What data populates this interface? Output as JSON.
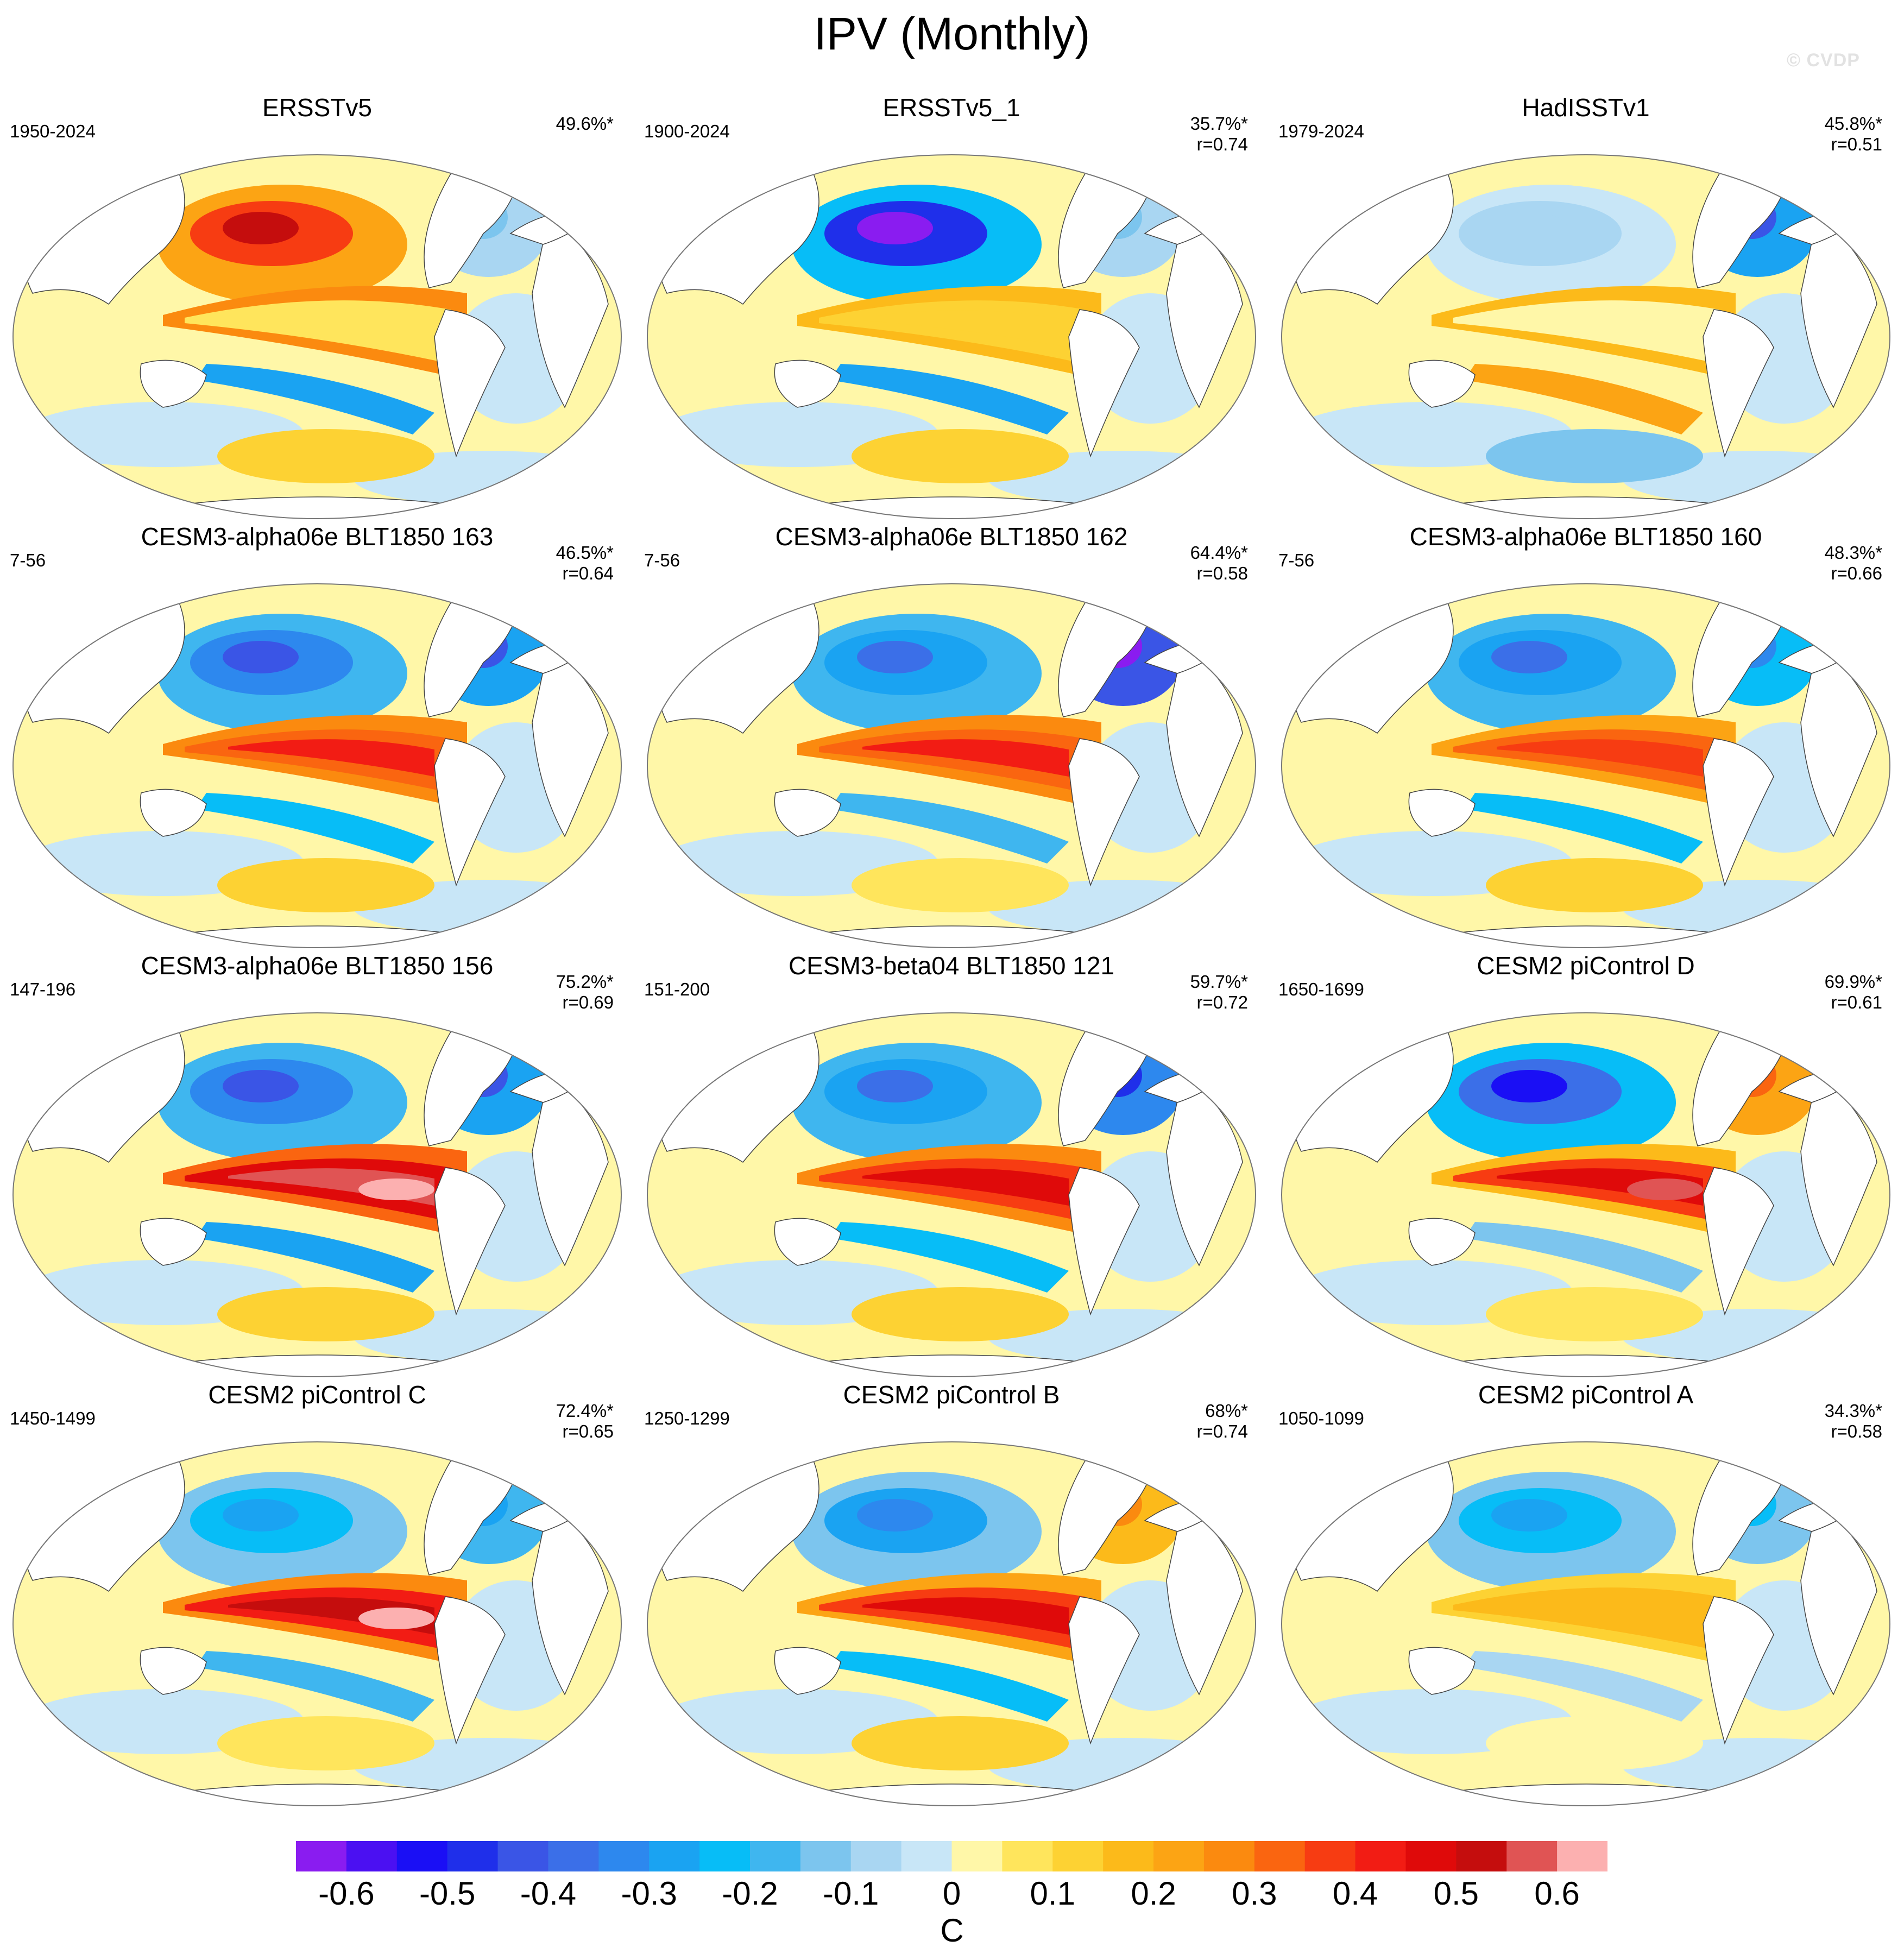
{
  "title": "IPV (Monthly)",
  "watermark": "© CVDP",
  "panels": [
    {
      "title": "ERSSTv5",
      "period": "1950-2024",
      "pct": "49.6%*",
      "r": "",
      "pattern": 0
    },
    {
      "title": "ERSSTv5_1",
      "period": "1900-2024",
      "pct": "35.7%*",
      "r": "r=0.74",
      "pattern": 1
    },
    {
      "title": "HadISSTv1",
      "period": "1979-2024",
      "pct": "45.8%*",
      "r": "r=0.51",
      "pattern": 2
    },
    {
      "title": "CESM3-alpha06e BLT1850 163",
      "period": "7-56",
      "pct": "46.5%*",
      "r": "r=0.64",
      "pattern": 3
    },
    {
      "title": "CESM3-alpha06e BLT1850 162",
      "period": "7-56",
      "pct": "64.4%*",
      "r": "r=0.58",
      "pattern": 4
    },
    {
      "title": "CESM3-alpha06e BLT1850 160",
      "period": "7-56",
      "pct": "48.3%*",
      "r": "r=0.66",
      "pattern": 5
    },
    {
      "title": "CESM3-alpha06e BLT1850 156",
      "period": "147-196",
      "pct": "75.2%*",
      "r": "r=0.69",
      "pattern": 6
    },
    {
      "title": "CESM3-beta04 BLT1850 121",
      "period": "151-200",
      "pct": "59.7%*",
      "r": "r=0.72",
      "pattern": 7
    },
    {
      "title": "CESM2 piControl D",
      "period": "1650-1699",
      "pct": "69.9%*",
      "r": "r=0.61",
      "pattern": 8
    },
    {
      "title": "CESM2 piControl C",
      "period": "1450-1499",
      "pct": "72.4%*",
      "r": "r=0.65",
      "pattern": 9
    },
    {
      "title": "CESM2 piControl B",
      "period": "1250-1299",
      "pct": "68%*",
      "r": "r=0.74",
      "pattern": 10
    },
    {
      "title": "CESM2 piControl A",
      "period": "1050-1099",
      "pct": "34.3%*",
      "r": "r=0.58",
      "pattern": 11
    }
  ],
  "colorbar": {
    "units": "C",
    "labels": [
      "-0.6",
      "-0.5",
      "-0.4",
      "-0.3",
      "-0.2",
      "-0.1",
      "0",
      "0.1",
      "0.2",
      "0.3",
      "0.4",
      "0.5",
      "0.6"
    ],
    "colors": [
      "#8a1cf0",
      "#4b10f2",
      "#1a0ff5",
      "#1f2fea",
      "#3a55e6",
      "#3b6fe8",
      "#2d88ee",
      "#1aa3f2",
      "#07bdf7",
      "#3fb6ef",
      "#7cc5ee",
      "#a9d6f2",
      "#c8e6f7",
      "#fff7a8",
      "#ffe55c",
      "#fdd233",
      "#fcba1a",
      "#fca414",
      "#fb8a0f",
      "#fa6510",
      "#f73c12",
      "#f21c14",
      "#df0a0a",
      "#c50d0d",
      "#e05454",
      "#fcb0b0"
    ]
  }
}
